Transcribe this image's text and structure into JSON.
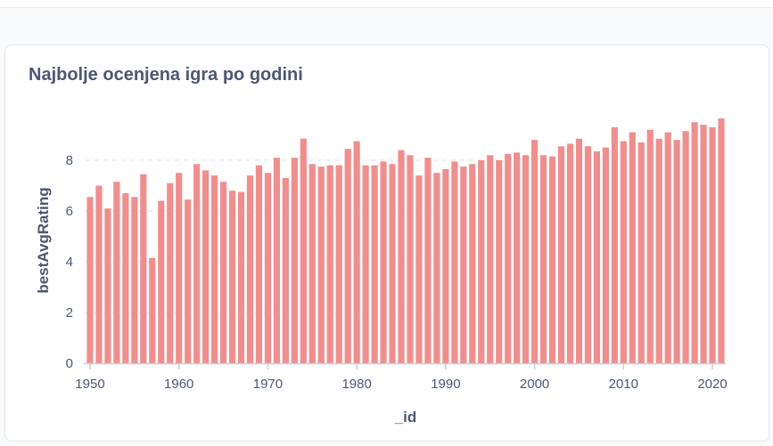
{
  "card": {
    "title": "Najbolje ocenjena igra po godini"
  },
  "chart_data": {
    "type": "bar",
    "xlabel": "_id",
    "ylabel": "bestAvgRating",
    "ylim": [
      0,
      10
    ],
    "y_ticks": [
      0,
      2,
      4,
      6,
      8
    ],
    "x_ticks": [
      1950,
      1960,
      1970,
      1980,
      1990,
      2000,
      2010,
      2020
    ],
    "grid": "horizontal dashed at 8",
    "bar_color": "#f08e8e",
    "x": [
      1950,
      1951,
      1952,
      1953,
      1954,
      1955,
      1956,
      1957,
      1958,
      1959,
      1960,
      1961,
      1962,
      1963,
      1964,
      1965,
      1966,
      1967,
      1968,
      1969,
      1970,
      1971,
      1972,
      1973,
      1974,
      1975,
      1976,
      1977,
      1978,
      1979,
      1980,
      1981,
      1982,
      1983,
      1984,
      1985,
      1986,
      1987,
      1988,
      1989,
      1990,
      1991,
      1992,
      1993,
      1994,
      1995,
      1996,
      1997,
      1998,
      1999,
      2000,
      2001,
      2002,
      2003,
      2004,
      2005,
      2006,
      2007,
      2008,
      2009,
      2010,
      2011,
      2012,
      2013,
      2014,
      2015,
      2016,
      2017,
      2018,
      2019,
      2020,
      2021
    ],
    "values": [
      6.55,
      7.0,
      6.1,
      7.15,
      6.7,
      6.55,
      7.45,
      4.15,
      6.4,
      7.1,
      7.5,
      6.45,
      7.85,
      7.6,
      7.4,
      7.15,
      6.8,
      6.75,
      7.4,
      7.8,
      7.5,
      8.1,
      7.3,
      8.1,
      8.85,
      7.85,
      7.75,
      7.8,
      7.8,
      8.45,
      8.75,
      7.8,
      7.8,
      7.95,
      7.85,
      8.4,
      8.2,
      7.4,
      8.1,
      7.5,
      7.65,
      7.95,
      7.75,
      7.85,
      8.0,
      8.2,
      8.0,
      8.25,
      8.3,
      8.2,
      8.8,
      8.2,
      8.15,
      8.55,
      8.65,
      8.85,
      8.55,
      8.35,
      8.5,
      9.3,
      8.75,
      9.1,
      8.7,
      9.2,
      8.85,
      9.1,
      8.8,
      9.15,
      9.5,
      9.4,
      9.3,
      9.65
    ]
  }
}
